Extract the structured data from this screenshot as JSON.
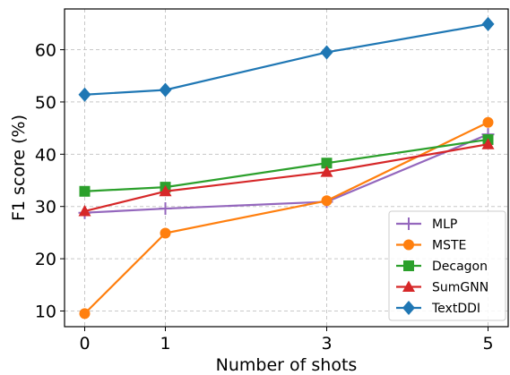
{
  "chart_data": {
    "type": "line",
    "title": "",
    "xlabel": "Number of shots",
    "ylabel": "F1 score (%)",
    "x": [
      0,
      1,
      3,
      5
    ],
    "x_ticks": [
      0,
      1,
      3,
      5
    ],
    "y_ticks": [
      10,
      20,
      30,
      40,
      50,
      60
    ],
    "xlim": [
      -0.25,
      5.25
    ],
    "ylim": [
      7,
      67.8
    ],
    "grid": true,
    "grid_style": "dashed",
    "legend_position": "bottom-right",
    "series": [
      {
        "name": "MLP",
        "color": "#9467bd",
        "marker": "plus",
        "values": [
          28.8,
          29.6,
          30.9,
          43.8
        ]
      },
      {
        "name": "MSTE",
        "color": "#ff7f0e",
        "marker": "circle",
        "values": [
          9.5,
          24.9,
          31.1,
          46.1
        ]
      },
      {
        "name": "Decagon",
        "color": "#2ca02c",
        "marker": "square",
        "values": [
          32.9,
          33.7,
          38.3,
          42.8
        ]
      },
      {
        "name": "SumGNN",
        "color": "#d62728",
        "marker": "triangle",
        "values": [
          29.1,
          32.9,
          36.6,
          41.9
        ]
      },
      {
        "name": "TextDDI",
        "color": "#1f77b4",
        "marker": "diamond",
        "values": [
          51.4,
          52.3,
          59.5,
          64.9
        ]
      }
    ]
  }
}
